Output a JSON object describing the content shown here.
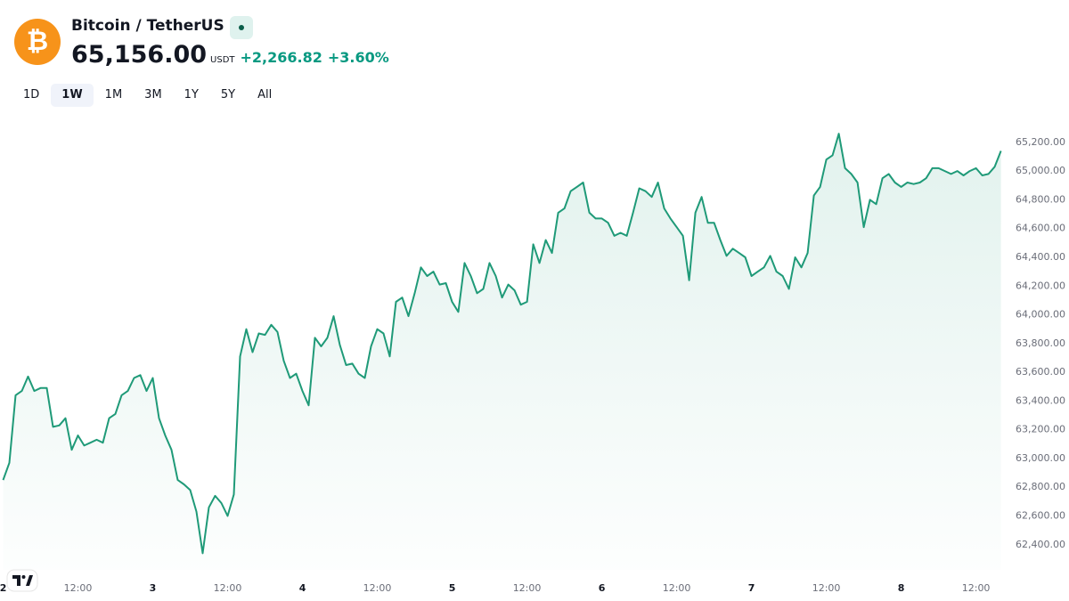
{
  "header": {
    "title": "Bitcoin / TetherUS",
    "price": "65,156.00",
    "currency": "USDT",
    "change": "+2,266.82",
    "change_percent": "+3.60%",
    "ranges": [
      "1D",
      "1W",
      "1M",
      "3M",
      "1Y",
      "5Y",
      "All"
    ],
    "active_range": "1W"
  },
  "chart_data": {
    "type": "line",
    "color": "#1f9a78",
    "grid": false,
    "x": [
      0,
      1,
      2,
      3,
      4,
      5,
      6,
      7,
      8,
      9,
      10,
      11,
      12,
      13,
      14,
      15,
      16,
      17,
      18,
      19,
      20,
      21,
      22,
      23,
      24,
      25,
      26,
      27,
      28,
      29,
      30,
      31,
      32,
      33,
      34,
      35,
      36,
      37,
      38,
      39,
      40,
      41,
      42,
      43,
      44,
      45,
      46,
      47,
      48,
      49,
      50,
      51,
      52,
      53,
      54,
      55,
      56,
      57,
      58,
      59,
      60,
      61,
      62,
      63,
      64,
      65,
      66,
      67,
      68,
      69,
      70,
      71,
      72,
      73,
      74,
      75,
      76,
      77,
      78,
      79,
      80,
      81,
      82,
      83,
      84,
      85,
      86,
      87,
      88,
      89,
      90,
      91,
      92,
      93,
      94,
      95,
      96,
      97,
      98,
      99,
      100,
      101,
      102,
      103,
      104,
      105,
      106,
      107,
      108,
      109,
      110,
      111,
      112,
      113,
      114,
      115,
      116,
      117,
      118,
      119,
      120,
      121,
      122,
      123,
      124,
      125,
      126,
      127,
      128,
      129,
      130,
      131,
      132,
      133,
      134,
      135,
      136,
      137,
      138,
      139,
      140,
      141,
      142,
      143,
      144,
      145,
      146,
      147,
      148,
      149,
      150,
      151,
      152,
      153,
      154,
      155,
      156,
      157,
      158,
      159,
      160
    ],
    "values": [
      62850,
      62970,
      63440,
      63470,
      63570,
      63470,
      63490,
      63490,
      63220,
      63230,
      63280,
      63060,
      63160,
      63090,
      63110,
      63130,
      63110,
      63280,
      63310,
      63440,
      63470,
      63560,
      63580,
      63470,
      63560,
      63280,
      63160,
      63060,
      62850,
      62820,
      62780,
      62630,
      62340,
      62660,
      62740,
      62690,
      62600,
      62750,
      63710,
      63900,
      63740,
      63870,
      63860,
      63930,
      63880,
      63680,
      63560,
      63590,
      63470,
      63370,
      63840,
      63780,
      63840,
      63990,
      63790,
      63650,
      63660,
      63590,
      63560,
      63780,
      63900,
      63870,
      63710,
      64090,
      64120,
      63990,
      64150,
      64330,
      64270,
      64300,
      64210,
      64220,
      64090,
      64020,
      64360,
      64270,
      64150,
      64180,
      64360,
      64270,
      64120,
      64210,
      64170,
      64070,
      64090,
      64490,
      64360,
      64520,
      64430,
      64710,
      64740,
      64860,
      64890,
      64920,
      64710,
      64670,
      64670,
      64640,
      64550,
      64570,
      64550,
      64710,
      64880,
      64860,
      64820,
      64920,
      64740,
      64670,
      64610,
      64550,
      64240,
      64710,
      64820,
      64640,
      64640,
      64520,
      64410,
      64460,
      64430,
      64400,
      64270,
      64300,
      64330,
      64410,
      64300,
      64270,
      64180,
      64400,
      64330,
      64430,
      64830,
      64890,
      65080,
      65110,
      65260,
      65020,
      64980,
      64920,
      64610,
      64800,
      64770,
      64950,
      64980,
      64920,
      64890,
      64920,
      64910,
      64920,
      64950,
      65020,
      65020,
      65000,
      64980,
      65000,
      64970,
      65000,
      65020,
      64970,
      64980,
      65030,
      65140
    ],
    "xlim": [
      -0.5,
      160.2
    ],
    "xticks": [
      {
        "value": 0,
        "label": "2"
      },
      {
        "value": 12,
        "label": "12:00"
      },
      {
        "value": 24,
        "label": "3"
      },
      {
        "value": 36,
        "label": "12:00"
      },
      {
        "value": 48,
        "label": "4"
      },
      {
        "value": 60,
        "label": "12:00"
      },
      {
        "value": 72,
        "label": "5"
      },
      {
        "value": 84,
        "label": "12:00"
      },
      {
        "value": 96,
        "label": "6"
      },
      {
        "value": 108,
        "label": "12:00"
      },
      {
        "value": 120,
        "label": "7"
      },
      {
        "value": 132,
        "label": "12:00"
      },
      {
        "value": 144,
        "label": "8"
      },
      {
        "value": 156,
        "label": "12:00"
      }
    ],
    "ylim": [
      62225,
      65385
    ],
    "yticks": [
      {
        "value": 62400,
        "label": "62,400.00"
      },
      {
        "value": 62600,
        "label": "62,600.00"
      },
      {
        "value": 62800,
        "label": "62,800.00"
      },
      {
        "value": 63000,
        "label": "63,000.00"
      },
      {
        "value": 63200,
        "label": "63,200.00"
      },
      {
        "value": 63400,
        "label": "63,400.00"
      },
      {
        "value": 63600,
        "label": "63,600.00"
      },
      {
        "value": 63800,
        "label": "63,800.00"
      },
      {
        "value": 64000,
        "label": "64,000.00"
      },
      {
        "value": 64200,
        "label": "64,200.00"
      },
      {
        "value": 64400,
        "label": "64,400.00"
      },
      {
        "value": 64600,
        "label": "64,600.00"
      },
      {
        "value": 64800,
        "label": "64,800.00"
      },
      {
        "value": 65000,
        "label": "65,000.00"
      },
      {
        "value": 65200,
        "label": "65,200.00"
      }
    ]
  }
}
